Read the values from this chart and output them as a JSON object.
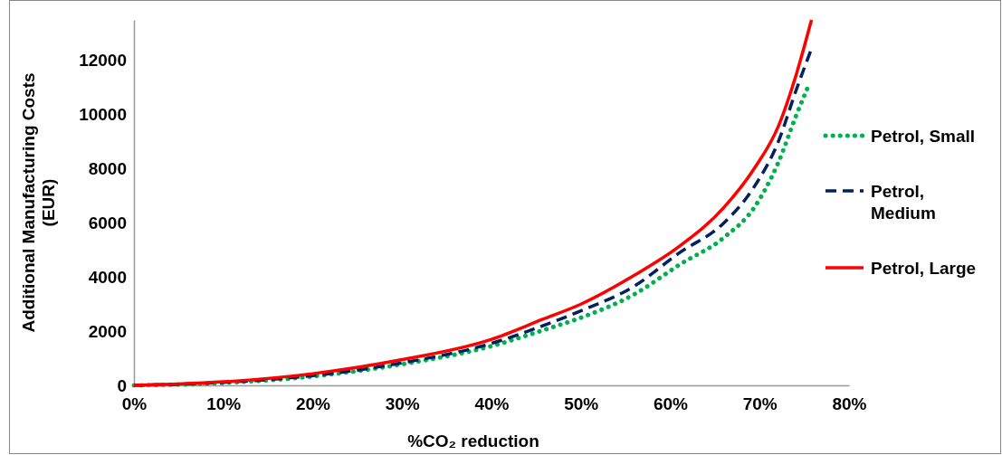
{
  "chart_data": {
    "type": "line",
    "xlabel": "%CO₂ reduction",
    "ylabel": "Additional Manufacturing Costs (EUR)",
    "xlim": [
      0,
      80
    ],
    "xticks": [
      {
        "value": 0,
        "label": "0%"
      },
      {
        "value": 10,
        "label": "10%"
      },
      {
        "value": 20,
        "label": "20%"
      },
      {
        "value": 30,
        "label": "30%"
      },
      {
        "value": 40,
        "label": "40%"
      },
      {
        "value": 50,
        "label": "50%"
      },
      {
        "value": 60,
        "label": "60%"
      },
      {
        "value": 70,
        "label": "70%"
      },
      {
        "value": 80,
        "label": "80%"
      }
    ],
    "ylim": [
      0,
      13500
    ],
    "yticks": [
      0,
      2000,
      4000,
      6000,
      8000,
      10000,
      12000
    ],
    "grid": false,
    "legend": "right",
    "marker": "none",
    "series": [
      {
        "name": "Petrol, Small",
        "color": "#00b050",
        "line_style": "dotted",
        "x": [
          0,
          5,
          10,
          20,
          30,
          40,
          45.8,
          50,
          55.9,
          61,
          66,
          69.4,
          72.1,
          74.1,
          75.4
        ],
        "values": [
          0,
          30,
          90,
          330,
          780,
          1450,
          2040,
          2500,
          3350,
          4450,
          5460,
          6570,
          8240,
          9980,
          11020
        ]
      },
      {
        "name": "Petrol, Medium",
        "color": "#002060",
        "line_style": "dashed",
        "x": [
          0,
          5,
          10,
          20,
          30,
          40,
          45.8,
          50,
          55.9,
          61,
          66,
          69.4,
          72.1,
          74.1,
          75.8
        ],
        "values": [
          0,
          40,
          110,
          360,
          830,
          1550,
          2210,
          2750,
          3650,
          4890,
          6000,
          7340,
          9010,
          10920,
          12430
        ]
      },
      {
        "name": "Petrol, Large",
        "color": "#ff0000",
        "line_style": "solid",
        "x": [
          0,
          5,
          10,
          20,
          30,
          40,
          45.8,
          50,
          55.9,
          61,
          66,
          69.4,
          72.1,
          74.1,
          75.8
        ],
        "values": [
          0,
          50,
          130,
          430,
          950,
          1700,
          2450,
          3000,
          4050,
          5130,
          6570,
          8010,
          9580,
          11490,
          13500
        ]
      }
    ]
  }
}
